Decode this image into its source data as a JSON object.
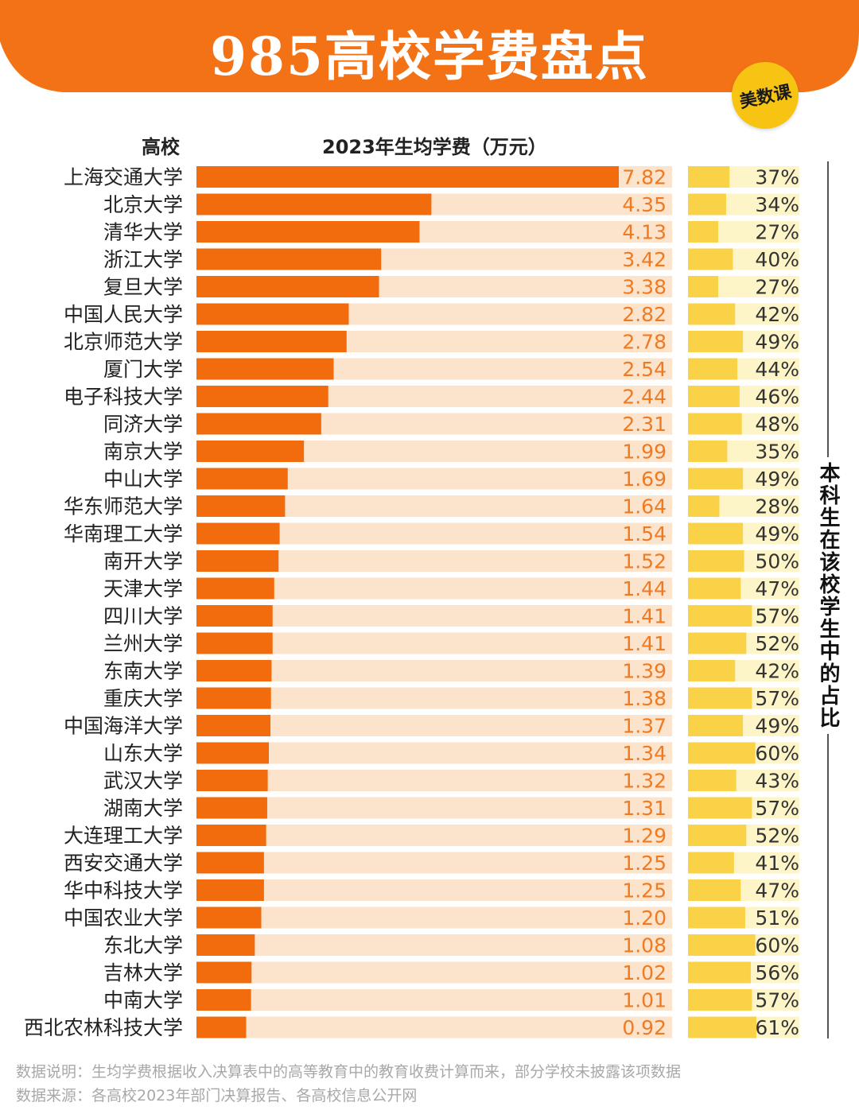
{
  "title": "985高校学费盘点",
  "brand": "美数课",
  "headers": {
    "school": "高校",
    "fee": "2023年生均学费（万元）"
  },
  "side_label": "本科生在该校学生中的占比",
  "notes": {
    "description": "数据说明：生均学费根据收入决算表中的高等教育中的教育收费计算而来，部分学校未披露该项数据",
    "source": "数据来源：各高校2023年部门决算报告、各高校信息公开网"
  },
  "colors": {
    "banner": "#f47216",
    "fee_bar": "#f26b0c",
    "fee_track": "#fbe3cc",
    "fee_label": "#f07a20",
    "share_bar": "#f9d247",
    "share_track": "#fdf4c7",
    "share_label": "#333333"
  },
  "chart_data": {
    "type": "bar",
    "orientation": "horizontal",
    "categories": [
      "上海交通大学",
      "北京大学",
      "清华大学",
      "浙江大学",
      "复旦大学",
      "中国人民大学",
      "北京师范大学",
      "厦门大学",
      "电子科技大学",
      "同济大学",
      "南京大学",
      "中山大学",
      "华东师范大学",
      "华南理工大学",
      "南开大学",
      "天津大学",
      "四川大学",
      "兰州大学",
      "东南大学",
      "重庆大学",
      "中国海洋大学",
      "山东大学",
      "武汉大学",
      "湖南大学",
      "大连理工大学",
      "西安交通大学",
      "华中科技大学",
      "中国农业大学",
      "东北大学",
      "吉林大学",
      "中南大学",
      "西北农林科技大学"
    ],
    "series": [
      {
        "name": "2023年生均学费（万元）",
        "values": [
          7.82,
          4.35,
          4.13,
          3.42,
          3.38,
          2.82,
          2.78,
          2.54,
          2.44,
          2.31,
          1.99,
          1.69,
          1.64,
          1.54,
          1.52,
          1.44,
          1.41,
          1.41,
          1.39,
          1.38,
          1.37,
          1.34,
          1.32,
          1.31,
          1.29,
          1.25,
          1.25,
          1.2,
          1.08,
          1.02,
          1.01,
          0.92
        ],
        "labels": [
          "7.82",
          "4.35",
          "4.13",
          "3.42",
          "3.38",
          "2.82",
          "2.78",
          "2.54",
          "2.44",
          "2.31",
          "1.99",
          "1.69",
          "1.64",
          "1.54",
          "1.52",
          "1.44",
          "1.41",
          "1.41",
          "1.39",
          "1.38",
          "1.37",
          "1.34",
          "1.32",
          "1.31",
          "1.29",
          "1.25",
          "1.25",
          "1.20",
          "1.08",
          "1.02",
          "1.01",
          "0.92"
        ]
      },
      {
        "name": "本科生在该校学生中的占比",
        "values": [
          37,
          34,
          27,
          40,
          27,
          42,
          49,
          44,
          46,
          48,
          35,
          49,
          28,
          49,
          50,
          47,
          57,
          52,
          42,
          57,
          49,
          60,
          43,
          57,
          52,
          41,
          47,
          51,
          60,
          56,
          57,
          61
        ],
        "labels": [
          "37%",
          "34%",
          "27%",
          "40%",
          "27%",
          "42%",
          "49%",
          "44%",
          "46%",
          "48%",
          "35%",
          "49%",
          "28%",
          "49%",
          "50%",
          "47%",
          "57%",
          "52%",
          "42%",
          "57%",
          "49%",
          "60%",
          "43%",
          "57%",
          "52%",
          "41%",
          "47%",
          "51%",
          "60%",
          "56%",
          "57%",
          "61%"
        ]
      }
    ]
  }
}
